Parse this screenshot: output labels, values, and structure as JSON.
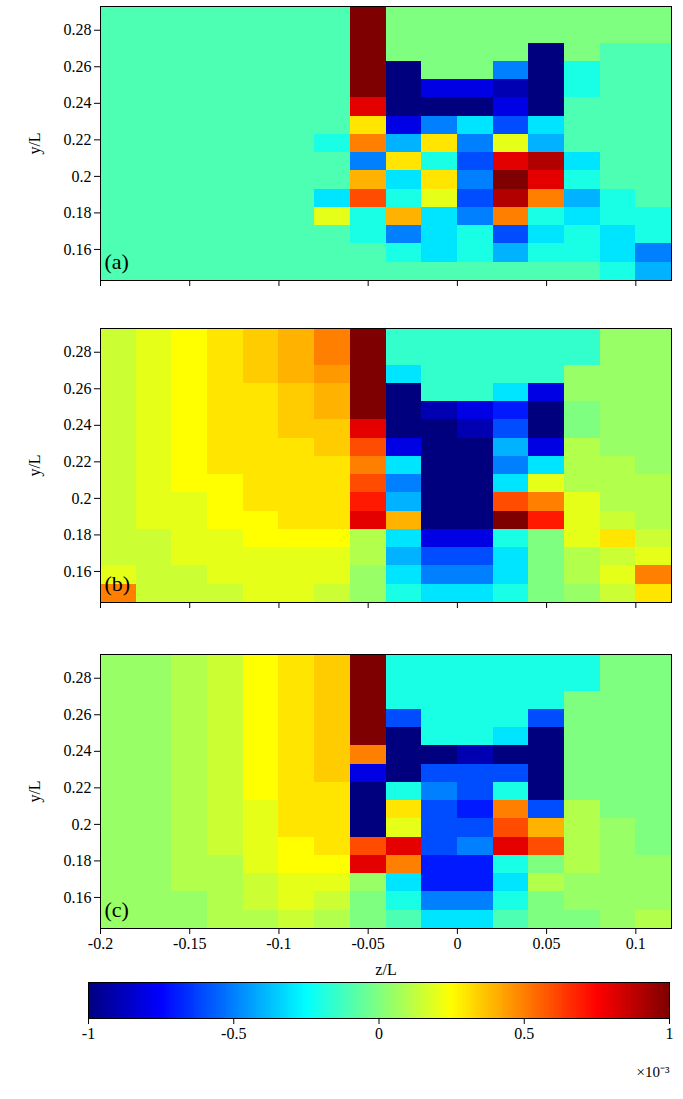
{
  "chart_data": [
    {
      "type": "heatmap",
      "panel_label": "(a)",
      "ylabel": "y/L",
      "xlim": [
        -0.2,
        0.12
      ],
      "ylim": [
        0.143,
        0.293
      ],
      "xticks": [
        -0.2,
        -0.15,
        -0.1,
        -0.05,
        0,
        0.05,
        0.1
      ],
      "yticks": [
        0.16,
        0.18,
        0.2,
        0.22,
        0.24,
        0.26,
        0.28
      ],
      "tick_labels": "y",
      "x": [
        -0.19,
        -0.17,
        -0.15,
        -0.13,
        -0.11,
        -0.09,
        -0.07,
        -0.05,
        -0.03,
        -0.01,
        0.01,
        0.03,
        0.05,
        0.07,
        0.09,
        0.11
      ],
      "y": [
        0.288,
        0.278,
        0.268,
        0.258,
        0.248,
        0.238,
        0.228,
        0.218,
        0.208,
        0.198,
        0.188,
        0.178,
        0.168,
        0.158,
        0.148
      ],
      "values": [
        [
          -0.1,
          -0.1,
          -0.1,
          -0.1,
          -0.1,
          -0.1,
          -0.1,
          1,
          0,
          0,
          0,
          0,
          0,
          0,
          0,
          0
        ],
        [
          -0.1,
          -0.1,
          -0.1,
          -0.1,
          -0.1,
          -0.1,
          -0.1,
          1,
          0,
          0,
          0,
          0,
          0,
          0,
          0,
          0
        ],
        [
          -0.1,
          -0.1,
          -0.1,
          -0.1,
          -0.1,
          -0.1,
          -0.1,
          1,
          0,
          0,
          0,
          0,
          -1,
          0,
          -0.1,
          -0.1
        ],
        [
          -0.1,
          -0.1,
          -0.1,
          -0.1,
          -0.1,
          -0.1,
          -0.1,
          1,
          -1,
          0,
          0,
          -0.5,
          -1,
          -0.2,
          -0.1,
          -0.1
        ],
        [
          -0.1,
          -0.1,
          -0.1,
          -0.1,
          -0.1,
          -0.1,
          -0.1,
          1,
          -1,
          -0.8,
          -0.8,
          -0.9,
          -1,
          -0.2,
          -0.1,
          -0.1
        ],
        [
          -0.1,
          -0.1,
          -0.1,
          -0.1,
          -0.1,
          -0.1,
          -0.1,
          0.8,
          -1,
          -1,
          -1,
          -0.8,
          -1,
          -0.1,
          -0.1,
          -0.1
        ],
        [
          -0.1,
          -0.1,
          -0.1,
          -0.1,
          -0.1,
          -0.1,
          -0.1,
          0.3,
          -0.8,
          -0.5,
          -0.3,
          -0.6,
          -0.3,
          -0.1,
          -0.1,
          -0.1
        ],
        [
          -0.1,
          -0.1,
          -0.1,
          -0.1,
          -0.1,
          -0.1,
          -0.2,
          0.5,
          -0.4,
          0.3,
          -0.5,
          0.2,
          -0.4,
          -0.1,
          -0.1,
          -0.1
        ],
        [
          -0.1,
          -0.1,
          -0.1,
          -0.1,
          -0.1,
          -0.1,
          -0.1,
          -0.5,
          0.3,
          -0.2,
          -0.6,
          0.8,
          0.9,
          -0.3,
          -0.1,
          -0.1
        ],
        [
          -0.1,
          -0.1,
          -0.1,
          -0.1,
          -0.1,
          -0.1,
          -0.1,
          0.4,
          -0.3,
          0.3,
          -0.5,
          1,
          0.8,
          -0.2,
          -0.1,
          -0.1
        ],
        [
          -0.1,
          -0.1,
          -0.1,
          -0.1,
          -0.1,
          -0.1,
          -0.3,
          0.6,
          -0.2,
          0.2,
          -0.6,
          0.9,
          0.5,
          -0.4,
          -0.2,
          -0.1
        ],
        [
          -0.1,
          -0.1,
          -0.1,
          -0.1,
          -0.1,
          -0.1,
          0.2,
          -0.2,
          0.4,
          -0.3,
          -0.5,
          0.5,
          -0.2,
          -0.3,
          -0.2,
          -0.2
        ],
        [
          -0.1,
          -0.1,
          -0.1,
          -0.1,
          -0.1,
          -0.1,
          -0.1,
          -0.2,
          -0.5,
          -0.3,
          -0.2,
          -0.6,
          -0.3,
          -0.2,
          -0.3,
          -0.2
        ],
        [
          -0.1,
          -0.1,
          -0.1,
          -0.1,
          -0.1,
          -0.1,
          -0.1,
          -0.1,
          -0.2,
          -0.3,
          -0.2,
          -0.4,
          -0.2,
          -0.2,
          -0.3,
          -0.5
        ],
        [
          -0.1,
          -0.1,
          -0.1,
          -0.1,
          -0.1,
          -0.1,
          -0.1,
          -0.1,
          -0.1,
          -0.1,
          -0.1,
          -0.1,
          -0.1,
          -0.1,
          -0.2,
          -0.4
        ]
      ]
    },
    {
      "type": "heatmap",
      "panel_label": "(b)",
      "ylabel": "y/L",
      "xlim": [
        -0.2,
        0.12
      ],
      "ylim": [
        0.143,
        0.293
      ],
      "xticks": [
        -0.2,
        -0.15,
        -0.1,
        -0.05,
        0,
        0.05,
        0.1
      ],
      "yticks": [
        0.16,
        0.18,
        0.2,
        0.22,
        0.24,
        0.26,
        0.28
      ],
      "tick_labels": "y",
      "x": [
        -0.19,
        -0.17,
        -0.15,
        -0.13,
        -0.11,
        -0.09,
        -0.07,
        -0.05,
        -0.03,
        -0.01,
        0.01,
        0.03,
        0.05,
        0.07,
        0.09,
        0.11
      ],
      "y": [
        0.288,
        0.278,
        0.268,
        0.258,
        0.248,
        0.238,
        0.228,
        0.218,
        0.208,
        0.198,
        0.188,
        0.178,
        0.168,
        0.158,
        0.148
      ],
      "values": [
        [
          0.15,
          0.2,
          0.25,
          0.3,
          0.35,
          0.4,
          0.5,
          1,
          -0.15,
          -0.15,
          -0.15,
          -0.15,
          -0.15,
          -0.15,
          0.05,
          0.05
        ],
        [
          0.15,
          0.2,
          0.25,
          0.3,
          0.35,
          0.4,
          0.5,
          1,
          -0.15,
          -0.15,
          -0.15,
          -0.15,
          -0.15,
          -0.15,
          0.05,
          0.05
        ],
        [
          0.15,
          0.2,
          0.25,
          0.3,
          0.35,
          0.4,
          0.45,
          1,
          -0.3,
          -0.15,
          -0.15,
          -0.15,
          -0.15,
          0.05,
          0.05,
          0.05
        ],
        [
          0.15,
          0.2,
          0.25,
          0.3,
          0.3,
          0.35,
          0.4,
          1,
          -1,
          -0.15,
          -0.15,
          -0.3,
          -0.8,
          0.05,
          0.05,
          0.05
        ],
        [
          0.15,
          0.2,
          0.25,
          0.3,
          0.3,
          0.35,
          0.4,
          1,
          -1,
          -0.9,
          -0.8,
          -0.7,
          -1,
          0,
          0.05,
          0.05
        ],
        [
          0.15,
          0.2,
          0.25,
          0.3,
          0.3,
          0.35,
          0.35,
          0.8,
          -1,
          -1,
          -0.9,
          -0.6,
          -1,
          0,
          0.05,
          0.05
        ],
        [
          0.15,
          0.2,
          0.25,
          0.3,
          0.3,
          0.3,
          0.35,
          0.6,
          -0.8,
          -1,
          -1,
          -0.4,
          -0.8,
          0.1,
          0.05,
          0.05
        ],
        [
          0.15,
          0.2,
          0.25,
          0.3,
          0.3,
          0.3,
          0.3,
          0.5,
          -0.3,
          -1,
          -1,
          -0.5,
          -0.3,
          0.1,
          0.1,
          0.05
        ],
        [
          0.15,
          0.2,
          0.25,
          0.25,
          0.3,
          0.3,
          0.3,
          0.6,
          -0.5,
          -1,
          -1,
          -0.3,
          0.2,
          0.1,
          0.1,
          0.1
        ],
        [
          0.15,
          0.2,
          0.2,
          0.25,
          0.3,
          0.3,
          0.3,
          0.7,
          -0.4,
          -1,
          -1,
          0.6,
          0.5,
          0.2,
          0.1,
          0.1
        ],
        [
          0.15,
          0.2,
          0.2,
          0.25,
          0.25,
          0.3,
          0.3,
          0.8,
          0.4,
          -1,
          -1,
          1,
          0.7,
          0.2,
          0.15,
          0.1
        ],
        [
          0.15,
          0.15,
          0.2,
          0.2,
          0.25,
          0.25,
          0.25,
          0.1,
          -0.3,
          -0.8,
          -0.8,
          -0.2,
          0,
          0.2,
          0.3,
          0.15
        ],
        [
          0.15,
          0.15,
          0.2,
          0.2,
          0.2,
          0.2,
          0.2,
          0.1,
          -0.4,
          -0.6,
          -0.6,
          -0.3,
          0,
          0.1,
          0.15,
          0.2
        ],
        [
          0.2,
          0.15,
          0.15,
          0.2,
          0.2,
          0.2,
          0.2,
          0.05,
          -0.3,
          -0.5,
          -0.5,
          -0.3,
          0,
          0.1,
          0.2,
          0.5
        ],
        [
          0.5,
          0.15,
          0.15,
          0.15,
          0.2,
          0.2,
          0.15,
          0.05,
          -0.2,
          -0.3,
          -0.3,
          -0.2,
          0,
          0.05,
          0.15,
          0.3
        ]
      ]
    },
    {
      "type": "heatmap",
      "panel_label": "(c)",
      "ylabel": "y/L",
      "xlabel": "z/L",
      "xlim": [
        -0.2,
        0.12
      ],
      "ylim": [
        0.143,
        0.293
      ],
      "xticks": [
        -0.2,
        -0.15,
        -0.1,
        -0.05,
        0,
        0.05,
        0.1
      ],
      "yticks": [
        0.16,
        0.18,
        0.2,
        0.22,
        0.24,
        0.26,
        0.28
      ],
      "x": [
        -0.19,
        -0.17,
        -0.15,
        -0.13,
        -0.11,
        -0.09,
        -0.07,
        -0.05,
        -0.03,
        -0.01,
        0.01,
        0.03,
        0.05,
        0.07,
        0.09,
        0.11
      ],
      "y": [
        0.288,
        0.278,
        0.268,
        0.258,
        0.248,
        0.238,
        0.228,
        0.218,
        0.208,
        0.198,
        0.188,
        0.178,
        0.168,
        0.158,
        0.148
      ],
      "values": [
        [
          0.05,
          0.05,
          0.1,
          0.15,
          0.25,
          0.3,
          0.35,
          1,
          -0.2,
          -0.2,
          -0.2,
          -0.2,
          -0.2,
          -0.2,
          0,
          0
        ],
        [
          0.05,
          0.05,
          0.1,
          0.15,
          0.25,
          0.3,
          0.35,
          1,
          -0.2,
          -0.2,
          -0.2,
          -0.2,
          -0.2,
          -0.2,
          0,
          0
        ],
        [
          0.05,
          0.05,
          0.1,
          0.15,
          0.25,
          0.3,
          0.35,
          1,
          -0.2,
          -0.2,
          -0.2,
          -0.2,
          -0.2,
          0,
          0,
          0
        ],
        [
          0.05,
          0.05,
          0.1,
          0.15,
          0.25,
          0.3,
          0.35,
          1,
          -0.6,
          -0.2,
          -0.2,
          -0.2,
          -0.6,
          0,
          0,
          0
        ],
        [
          0.05,
          0.05,
          0.1,
          0.15,
          0.25,
          0.3,
          0.35,
          1,
          -1,
          -0.2,
          -0.2,
          -0.3,
          -1,
          0,
          0,
          0
        ],
        [
          0.05,
          0.05,
          0.1,
          0.15,
          0.25,
          0.3,
          0.35,
          0.5,
          -1,
          -1,
          -0.9,
          -1,
          -1,
          0,
          0,
          0
        ],
        [
          0.05,
          0.05,
          0.1,
          0.15,
          0.25,
          0.3,
          0.35,
          -0.8,
          -1,
          -0.6,
          -0.6,
          -0.6,
          -1,
          0,
          0,
          0
        ],
        [
          0.05,
          0.05,
          0.1,
          0.15,
          0.25,
          0.3,
          0.3,
          -1,
          -0.2,
          -0.5,
          -0.6,
          -0.2,
          -1,
          0,
          0,
          0
        ],
        [
          0.05,
          0.05,
          0.1,
          0.15,
          0.2,
          0.3,
          0.3,
          -1,
          0.3,
          -0.6,
          -0.7,
          0.5,
          -0.6,
          0.1,
          0,
          0
        ],
        [
          0.05,
          0.05,
          0.1,
          0.15,
          0.2,
          0.3,
          0.3,
          -1,
          0.2,
          -0.6,
          -0.6,
          0.6,
          0.4,
          0.1,
          0.05,
          0
        ],
        [
          0.05,
          0.05,
          0.1,
          0.15,
          0.2,
          0.25,
          0.3,
          0.6,
          0.8,
          -0.6,
          -0.5,
          0.8,
          0.6,
          0.1,
          0.05,
          0
        ],
        [
          0.05,
          0.05,
          0.1,
          0.1,
          0.2,
          0.25,
          0.25,
          0.8,
          0.5,
          -0.7,
          -0.7,
          -0.2,
          0,
          0.1,
          0.05,
          0.05
        ],
        [
          0.05,
          0.05,
          0.1,
          0.1,
          0.15,
          0.2,
          0.2,
          0.05,
          -0.3,
          -0.7,
          -0.7,
          -0.3,
          0.1,
          0.05,
          0.05,
          0.05
        ],
        [
          0.05,
          0.05,
          0.05,
          0.1,
          0.15,
          0.2,
          0.15,
          0,
          -0.2,
          -0.5,
          -0.5,
          -0.2,
          0,
          0.05,
          0.05,
          0.05
        ],
        [
          0.05,
          0.05,
          0.05,
          0.1,
          0.1,
          0.15,
          0.1,
          0,
          -0.1,
          -0.3,
          -0.3,
          -0.1,
          0,
          0,
          0.05,
          0.1
        ]
      ],
      "colorbar": {
        "range": [
          -1,
          1
        ],
        "ticks": [
          -1,
          -0.5,
          0,
          0.5,
          1
        ],
        "multiplier": "×10⁻³"
      }
    }
  ]
}
